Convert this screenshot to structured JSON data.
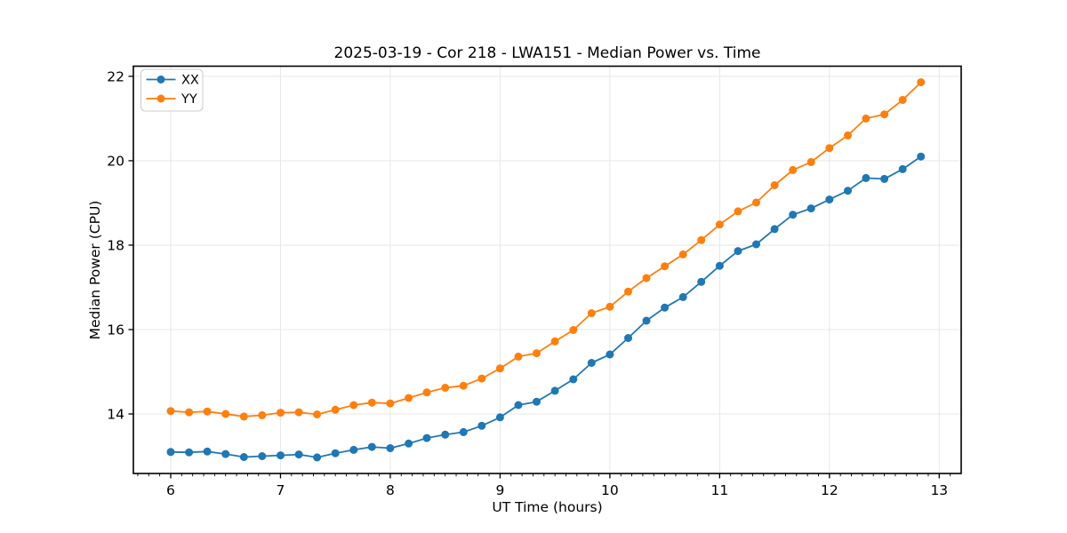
{
  "chart_data": {
    "type": "line",
    "title": "2025-03-19 - Cor 218 - LWA151 - Median Power vs. Time",
    "xlabel": "UT Time (hours)",
    "ylabel": "Median Power (CPU)",
    "xlim": [
      5.66,
      13.2
    ],
    "ylim": [
      12.59,
      22.24
    ],
    "x_major_ticks": [
      6,
      7,
      8,
      9,
      10,
      11,
      12,
      13
    ],
    "y_major_ticks": [
      14,
      16,
      18,
      20,
      22
    ],
    "x_minor_tick_step": 0.1,
    "grid": "major-only",
    "marker": "circle",
    "legend": {
      "position": "upper-left",
      "entries": [
        "XX",
        "YY"
      ]
    },
    "colors": {
      "grid": "#e7e7e7",
      "spine": "#000000",
      "legend_edge": "#cccccc",
      "series_xx": "#1f77b4",
      "series_yy": "#ff7f0e"
    },
    "x": [
      6.0,
      6.167,
      6.333,
      6.5,
      6.667,
      6.833,
      7.0,
      7.167,
      7.333,
      7.5,
      7.667,
      7.833,
      8.0,
      8.167,
      8.333,
      8.5,
      8.667,
      8.833,
      9.0,
      9.167,
      9.333,
      9.5,
      9.667,
      9.833,
      10.0,
      10.167,
      10.333,
      10.5,
      10.667,
      10.833,
      11.0,
      11.167,
      11.333,
      11.5,
      11.667,
      11.833,
      12.0,
      12.167,
      12.333,
      12.5,
      12.667,
      12.833
    ],
    "series": [
      {
        "name": "XX",
        "color": "#1f77b4",
        "values": [
          13.1,
          13.09,
          13.11,
          13.05,
          12.98,
          13.0,
          13.02,
          13.04,
          12.97,
          13.07,
          13.15,
          13.22,
          13.19,
          13.3,
          13.43,
          13.51,
          13.57,
          13.72,
          13.92,
          14.21,
          14.29,
          14.55,
          14.82,
          15.21,
          15.41,
          15.8,
          16.21,
          16.52,
          16.77,
          17.13,
          17.51,
          17.86,
          18.02,
          18.38,
          18.72,
          18.87,
          19.08,
          19.29,
          19.59,
          19.57,
          19.8,
          20.1
        ]
      },
      {
        "name": "YY",
        "color": "#ff7f0e",
        "values": [
          14.07,
          14.04,
          14.06,
          14.0,
          13.94,
          13.97,
          14.03,
          14.04,
          13.99,
          14.1,
          14.21,
          14.27,
          14.25,
          14.38,
          14.51,
          14.62,
          14.67,
          14.84,
          15.08,
          15.36,
          15.44,
          15.72,
          15.99,
          16.39,
          16.54,
          16.9,
          17.22,
          17.5,
          17.78,
          18.12,
          18.49,
          18.8,
          19.01,
          19.42,
          19.78,
          19.97,
          20.3,
          20.6,
          21.0,
          21.1,
          21.44,
          21.86
        ]
      }
    ]
  }
}
